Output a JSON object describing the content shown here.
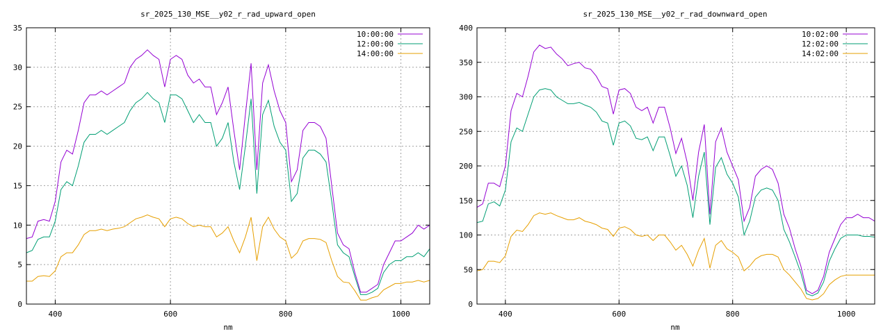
{
  "chart_data": [
    {
      "type": "line",
      "title": "sr_2025_130_MSE__y02_r_rad_upward_open",
      "xlabel": "nm",
      "ylabel": "",
      "xlim": [
        350,
        1050
      ],
      "ylim": [
        0,
        35
      ],
      "xticks": [
        400,
        600,
        800,
        1000
      ],
      "yticks": [
        0,
        5,
        10,
        15,
        20,
        25,
        30,
        35
      ],
      "grid": true,
      "legend_position": "top-right",
      "x": [
        350,
        360,
        370,
        380,
        390,
        400,
        410,
        420,
        430,
        440,
        450,
        460,
        470,
        480,
        490,
        500,
        510,
        520,
        530,
        540,
        550,
        560,
        570,
        580,
        590,
        600,
        610,
        620,
        630,
        640,
        650,
        660,
        670,
        680,
        690,
        700,
        710,
        720,
        730,
        740,
        750,
        760,
        770,
        780,
        790,
        800,
        810,
        820,
        830,
        840,
        850,
        860,
        870,
        880,
        890,
        900,
        910,
        920,
        930,
        940,
        950,
        960,
        970,
        980,
        990,
        1000,
        1010,
        1020,
        1030,
        1040,
        1050
      ],
      "series": [
        {
          "name": "10:00:00",
          "color": "#9400d3",
          "values": [
            8.3,
            8.5,
            10.5,
            10.7,
            10.5,
            13,
            18,
            19.5,
            19,
            22,
            25.5,
            26.5,
            26.5,
            27,
            26.5,
            27,
            27.5,
            28,
            30,
            31,
            31.5,
            32.2,
            31.5,
            31,
            27.5,
            31,
            31.5,
            31,
            29,
            28,
            28.5,
            27.5,
            27.5,
            24,
            25.5,
            27.5,
            22,
            17,
            24,
            30.5,
            17,
            28,
            30.3,
            27,
            24.5,
            23,
            15.5,
            17,
            22,
            23,
            23,
            22.5,
            21,
            15,
            9,
            7.5,
            7,
            4,
            1.5,
            1.5,
            2,
            2.5,
            5,
            6.5,
            8,
            8,
            8.5,
            9,
            10,
            9.5,
            10
          ]
        },
        {
          "name": "12:00:00",
          "color": "#009e73",
          "values": [
            6.5,
            6.8,
            8.2,
            8.5,
            8.5,
            10.5,
            14.5,
            15.5,
            15,
            17.5,
            20.5,
            21.5,
            21.5,
            22,
            21.5,
            22,
            22.5,
            23,
            24.5,
            25.5,
            26,
            26.8,
            26,
            25.5,
            23,
            26.5,
            26.5,
            26,
            24.5,
            23,
            24,
            23,
            23,
            20,
            21,
            23,
            18,
            14.5,
            20,
            26,
            14,
            24,
            25.8,
            22.5,
            20.5,
            19.5,
            13,
            14,
            18.5,
            19.5,
            19.5,
            19,
            18,
            13,
            7.5,
            6.5,
            6,
            3.5,
            1.2,
            1.2,
            1.5,
            2,
            4,
            5,
            5.5,
            5.5,
            6,
            6,
            6.5,
            6,
            7
          ]
        },
        {
          "name": "14:00:00",
          "color": "#e69f00",
          "values": [
            2.9,
            2.9,
            3.5,
            3.6,
            3.5,
            4.2,
            6,
            6.5,
            6.5,
            7.5,
            8.8,
            9.3,
            9.3,
            9.5,
            9.3,
            9.5,
            9.6,
            9.8,
            10.3,
            10.8,
            11,
            11.3,
            11,
            10.8,
            9.8,
            10.8,
            11,
            10.8,
            10.2,
            9.8,
            10,
            9.8,
            9.8,
            8.5,
            9,
            9.8,
            8,
            6.5,
            8.5,
            11,
            5.5,
            9.8,
            11,
            9.5,
            8.5,
            8,
            5.8,
            6.5,
            8,
            8.3,
            8.3,
            8.2,
            7.8,
            5.5,
            3.5,
            2.8,
            2.7,
            1.7,
            0.5,
            0.5,
            0.8,
            1,
            1.8,
            2.2,
            2.6,
            2.6,
            2.8,
            2.8,
            3,
            2.8,
            3
          ]
        }
      ]
    },
    {
      "type": "line",
      "title": "sr_2025_130_MSE__y02_r_rad_downward_open",
      "xlabel": "nm",
      "ylabel": "",
      "xlim": [
        350,
        1050
      ],
      "ylim": [
        0,
        400
      ],
      "xticks": [
        400,
        600,
        800,
        1000
      ],
      "yticks": [
        0,
        50,
        100,
        150,
        200,
        250,
        300,
        350,
        400
      ],
      "grid": true,
      "legend_position": "top-right",
      "x": [
        350,
        360,
        370,
        380,
        390,
        400,
        410,
        420,
        430,
        440,
        450,
        460,
        470,
        480,
        490,
        500,
        510,
        520,
        530,
        540,
        550,
        560,
        570,
        580,
        590,
        600,
        610,
        620,
        630,
        640,
        650,
        660,
        670,
        680,
        690,
        700,
        710,
        720,
        730,
        740,
        750,
        760,
        770,
        780,
        790,
        800,
        810,
        820,
        830,
        840,
        850,
        860,
        870,
        880,
        890,
        900,
        910,
        920,
        930,
        940,
        950,
        960,
        970,
        980,
        990,
        1000,
        1010,
        1020,
        1030,
        1040,
        1050
      ],
      "series": [
        {
          "name": "10:02:00",
          "color": "#9400d3",
          "values": [
            140,
            145,
            175,
            175,
            170,
            200,
            280,
            305,
            300,
            330,
            365,
            375,
            370,
            372,
            362,
            355,
            345,
            348,
            350,
            342,
            340,
            330,
            315,
            312,
            275,
            310,
            312,
            305,
            285,
            280,
            285,
            262,
            285,
            285,
            255,
            218,
            240,
            205,
            150,
            220,
            260,
            130,
            235,
            255,
            220,
            200,
            180,
            120,
            140,
            185,
            195,
            200,
            195,
            175,
            130,
            110,
            80,
            55,
            20,
            15,
            20,
            40,
            75,
            95,
            115,
            125,
            125,
            130,
            125,
            125,
            120
          ]
        },
        {
          "name": "12:02:00",
          "color": "#009e73",
          "values": [
            118,
            120,
            145,
            148,
            142,
            165,
            235,
            255,
            250,
            275,
            300,
            310,
            312,
            310,
            300,
            295,
            290,
            290,
            292,
            288,
            285,
            278,
            265,
            262,
            230,
            262,
            265,
            258,
            240,
            238,
            242,
            222,
            242,
            242,
            215,
            185,
            200,
            172,
            125,
            185,
            220,
            115,
            198,
            212,
            188,
            175,
            155,
            100,
            120,
            155,
            165,
            168,
            165,
            150,
            108,
            90,
            68,
            45,
            15,
            12,
            16,
            32,
            62,
            80,
            95,
            100,
            100,
            100,
            98,
            98,
            97
          ]
        },
        {
          "name": "14:02:00",
          "color": "#e69f00",
          "values": [
            48,
            50,
            62,
            62,
            60,
            70,
            98,
            107,
            105,
            115,
            128,
            132,
            130,
            132,
            128,
            125,
            122,
            122,
            125,
            120,
            118,
            115,
            110,
            108,
            98,
            110,
            112,
            108,
            100,
            98,
            100,
            92,
            100,
            100,
            90,
            78,
            85,
            72,
            55,
            78,
            95,
            52,
            85,
            92,
            80,
            75,
            68,
            48,
            55,
            65,
            70,
            72,
            72,
            68,
            50,
            42,
            32,
            22,
            8,
            6,
            8,
            15,
            28,
            35,
            40,
            42,
            42,
            42,
            42,
            42,
            42
          ]
        }
      ]
    }
  ]
}
